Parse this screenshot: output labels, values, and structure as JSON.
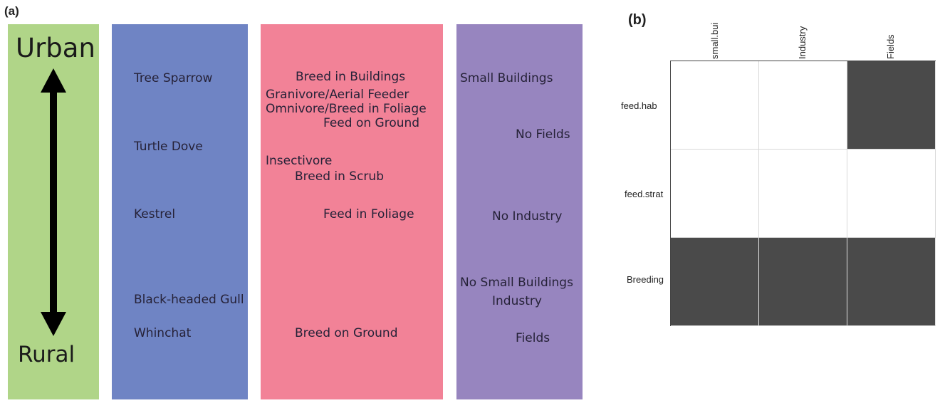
{
  "panel_a": {
    "label": "(a)",
    "axis": {
      "top": "Urban",
      "bottom": "Rural"
    },
    "species": [
      "Tree Sparrow",
      "Turtle Dove",
      "Kestrel",
      "Black-headed Gull",
      "Whinchat"
    ],
    "traits": [
      "Breed in Buildings",
      "Granivore/Aerial Feeder",
      "Omnivore/Breed in Foliage",
      "Feed on Ground",
      "Insectivore",
      "Breed in Scrub",
      "Feed in Foliage",
      "Breed on Ground"
    ],
    "environment": [
      "Small Buildings",
      "No Fields",
      "No Industry",
      "No Small Buildings",
      "Industry",
      "Fields"
    ],
    "colors": {
      "axis_column": "#b0d588",
      "species_column": "#6f84c4",
      "traits_column": "#f28297",
      "environment_column": "#9785bf",
      "arrow": "#000000"
    }
  },
  "panel_b": {
    "label": "(b)",
    "columns": [
      "small.bui",
      "Industry",
      "Fields"
    ],
    "rows": [
      "feed.hab",
      "feed.strat",
      "Breeding"
    ],
    "matrix": [
      [
        0,
        0,
        1
      ],
      [
        0,
        0,
        0
      ],
      [
        1,
        1,
        1
      ]
    ],
    "colors": {
      "filled": "#4a4a4a",
      "empty": "#ffffff",
      "grid": "#d8d8d8"
    }
  }
}
